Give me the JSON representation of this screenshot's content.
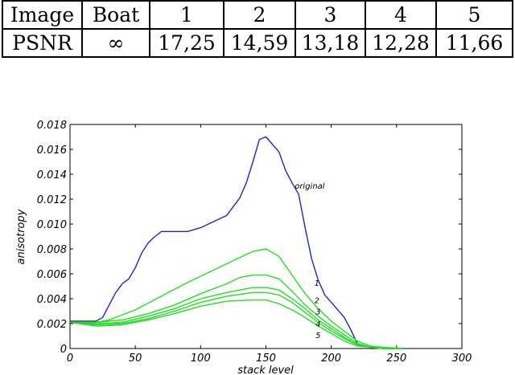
{
  "table": {
    "header": [
      "Image",
      "Boat",
      "1",
      "2",
      "3",
      "4",
      "5"
    ],
    "row": [
      "PSNR",
      "∞",
      "17,25",
      "14,59",
      "13,18",
      "12,28",
      "11,66"
    ]
  },
  "chart_data": {
    "type": "line",
    "xlabel": "stack level",
    "ylabel": "anisotropy",
    "xlim": [
      0,
      300
    ],
    "ylim": [
      0,
      0.018
    ],
    "xticks": [
      "0",
      "50",
      "100",
      "150",
      "200",
      "250",
      "300"
    ],
    "yticks": [
      "0",
      "0.002",
      "0.004",
      "0.006",
      "0.008",
      "0.010",
      "0.012",
      "0.014",
      "0.016",
      "0.018"
    ],
    "grid": false,
    "colors": {
      "original": "#2222cc",
      "noisy": "#22dd22"
    },
    "series": [
      {
        "name": "original",
        "x": [
          0,
          20,
          25,
          30,
          35,
          40,
          45,
          50,
          55,
          60,
          65,
          70,
          80,
          90,
          100,
          110,
          120,
          130,
          135,
          140,
          145,
          150,
          155,
          160,
          165,
          170,
          175,
          180,
          185,
          190,
          195,
          200,
          210,
          215,
          220,
          230,
          240,
          250,
          255
        ],
        "y": [
          0.0022,
          0.0022,
          0.0025,
          0.0035,
          0.0045,
          0.0052,
          0.0056,
          0.0065,
          0.0077,
          0.0085,
          0.009,
          0.0094,
          0.0094,
          0.0094,
          0.0097,
          0.0102,
          0.0107,
          0.0121,
          0.0133,
          0.015,
          0.0168,
          0.017,
          0.0164,
          0.0158,
          0.0143,
          0.0133,
          0.0124,
          0.0097,
          0.0072,
          0.0055,
          0.0043,
          0.0037,
          0.0025,
          0.0015,
          0.0004,
          0.0001,
          0.0,
          0.0,
          0.0
        ]
      },
      {
        "name": "1",
        "x": [
          0,
          20,
          30,
          50,
          70,
          90,
          110,
          130,
          140,
          150,
          160,
          170,
          180,
          190,
          200,
          210,
          220,
          230,
          240,
          255
        ],
        "y": [
          0.0021,
          0.0021,
          0.0023,
          0.0031,
          0.0042,
          0.0053,
          0.0063,
          0.0073,
          0.0078,
          0.008,
          0.0074,
          0.0059,
          0.0044,
          0.0032,
          0.0022,
          0.0014,
          0.0006,
          0.0002,
          0.0001,
          0.0
        ]
      },
      {
        "name": "2",
        "x": [
          0,
          20,
          40,
          60,
          80,
          100,
          120,
          130,
          140,
          150,
          160,
          170,
          180,
          190,
          200,
          210,
          220,
          230,
          240,
          255
        ],
        "y": [
          0.0021,
          0.0021,
          0.0023,
          0.0028,
          0.0035,
          0.0044,
          0.0052,
          0.0057,
          0.0059,
          0.0059,
          0.0056,
          0.0046,
          0.0035,
          0.0026,
          0.0018,
          0.0011,
          0.0004,
          0.0001,
          0.0,
          0.0
        ]
      },
      {
        "name": "3",
        "x": [
          0,
          20,
          40,
          60,
          80,
          100,
          120,
          140,
          150,
          160,
          170,
          180,
          190,
          200,
          210,
          220,
          230,
          240,
          255
        ],
        "y": [
          0.0021,
          0.002,
          0.0021,
          0.0026,
          0.0032,
          0.004,
          0.0045,
          0.0049,
          0.0049,
          0.0047,
          0.004,
          0.0032,
          0.0023,
          0.0016,
          0.0009,
          0.0003,
          0.0001,
          0.0,
          0.0
        ]
      },
      {
        "name": "4",
        "x": [
          0,
          20,
          40,
          60,
          80,
          100,
          120,
          140,
          150,
          160,
          170,
          180,
          190,
          200,
          210,
          220,
          230,
          240,
          255
        ],
        "y": [
          0.0021,
          0.0019,
          0.002,
          0.0024,
          0.003,
          0.0037,
          0.0042,
          0.0045,
          0.0045,
          0.0043,
          0.0037,
          0.0029,
          0.0021,
          0.0014,
          0.0008,
          0.0003,
          0.0001,
          0.0,
          0.0
        ]
      },
      {
        "name": "5",
        "x": [
          0,
          20,
          40,
          60,
          80,
          100,
          120,
          140,
          150,
          160,
          170,
          180,
          190,
          200,
          210,
          220,
          230,
          240,
          255
        ],
        "y": [
          0.0021,
          0.0018,
          0.0019,
          0.0023,
          0.0028,
          0.0034,
          0.0038,
          0.0039,
          0.0039,
          0.0036,
          0.0031,
          0.0025,
          0.0018,
          0.0012,
          0.0006,
          0.0002,
          0.0001,
          0.0,
          0.0
        ]
      }
    ],
    "annotations": [
      {
        "text": "original",
        "x": 172,
        "y": 0.0131
      },
      {
        "text": "1",
        "x": 187,
        "y": 0.0053
      },
      {
        "text": "2",
        "x": 187,
        "y": 0.0039
      },
      {
        "text": "3",
        "x": 188,
        "y": 0.003
      },
      {
        "text": "4",
        "x": 188,
        "y": 0.002
      },
      {
        "text": "5",
        "x": 188,
        "y": 0.0011
      }
    ]
  }
}
